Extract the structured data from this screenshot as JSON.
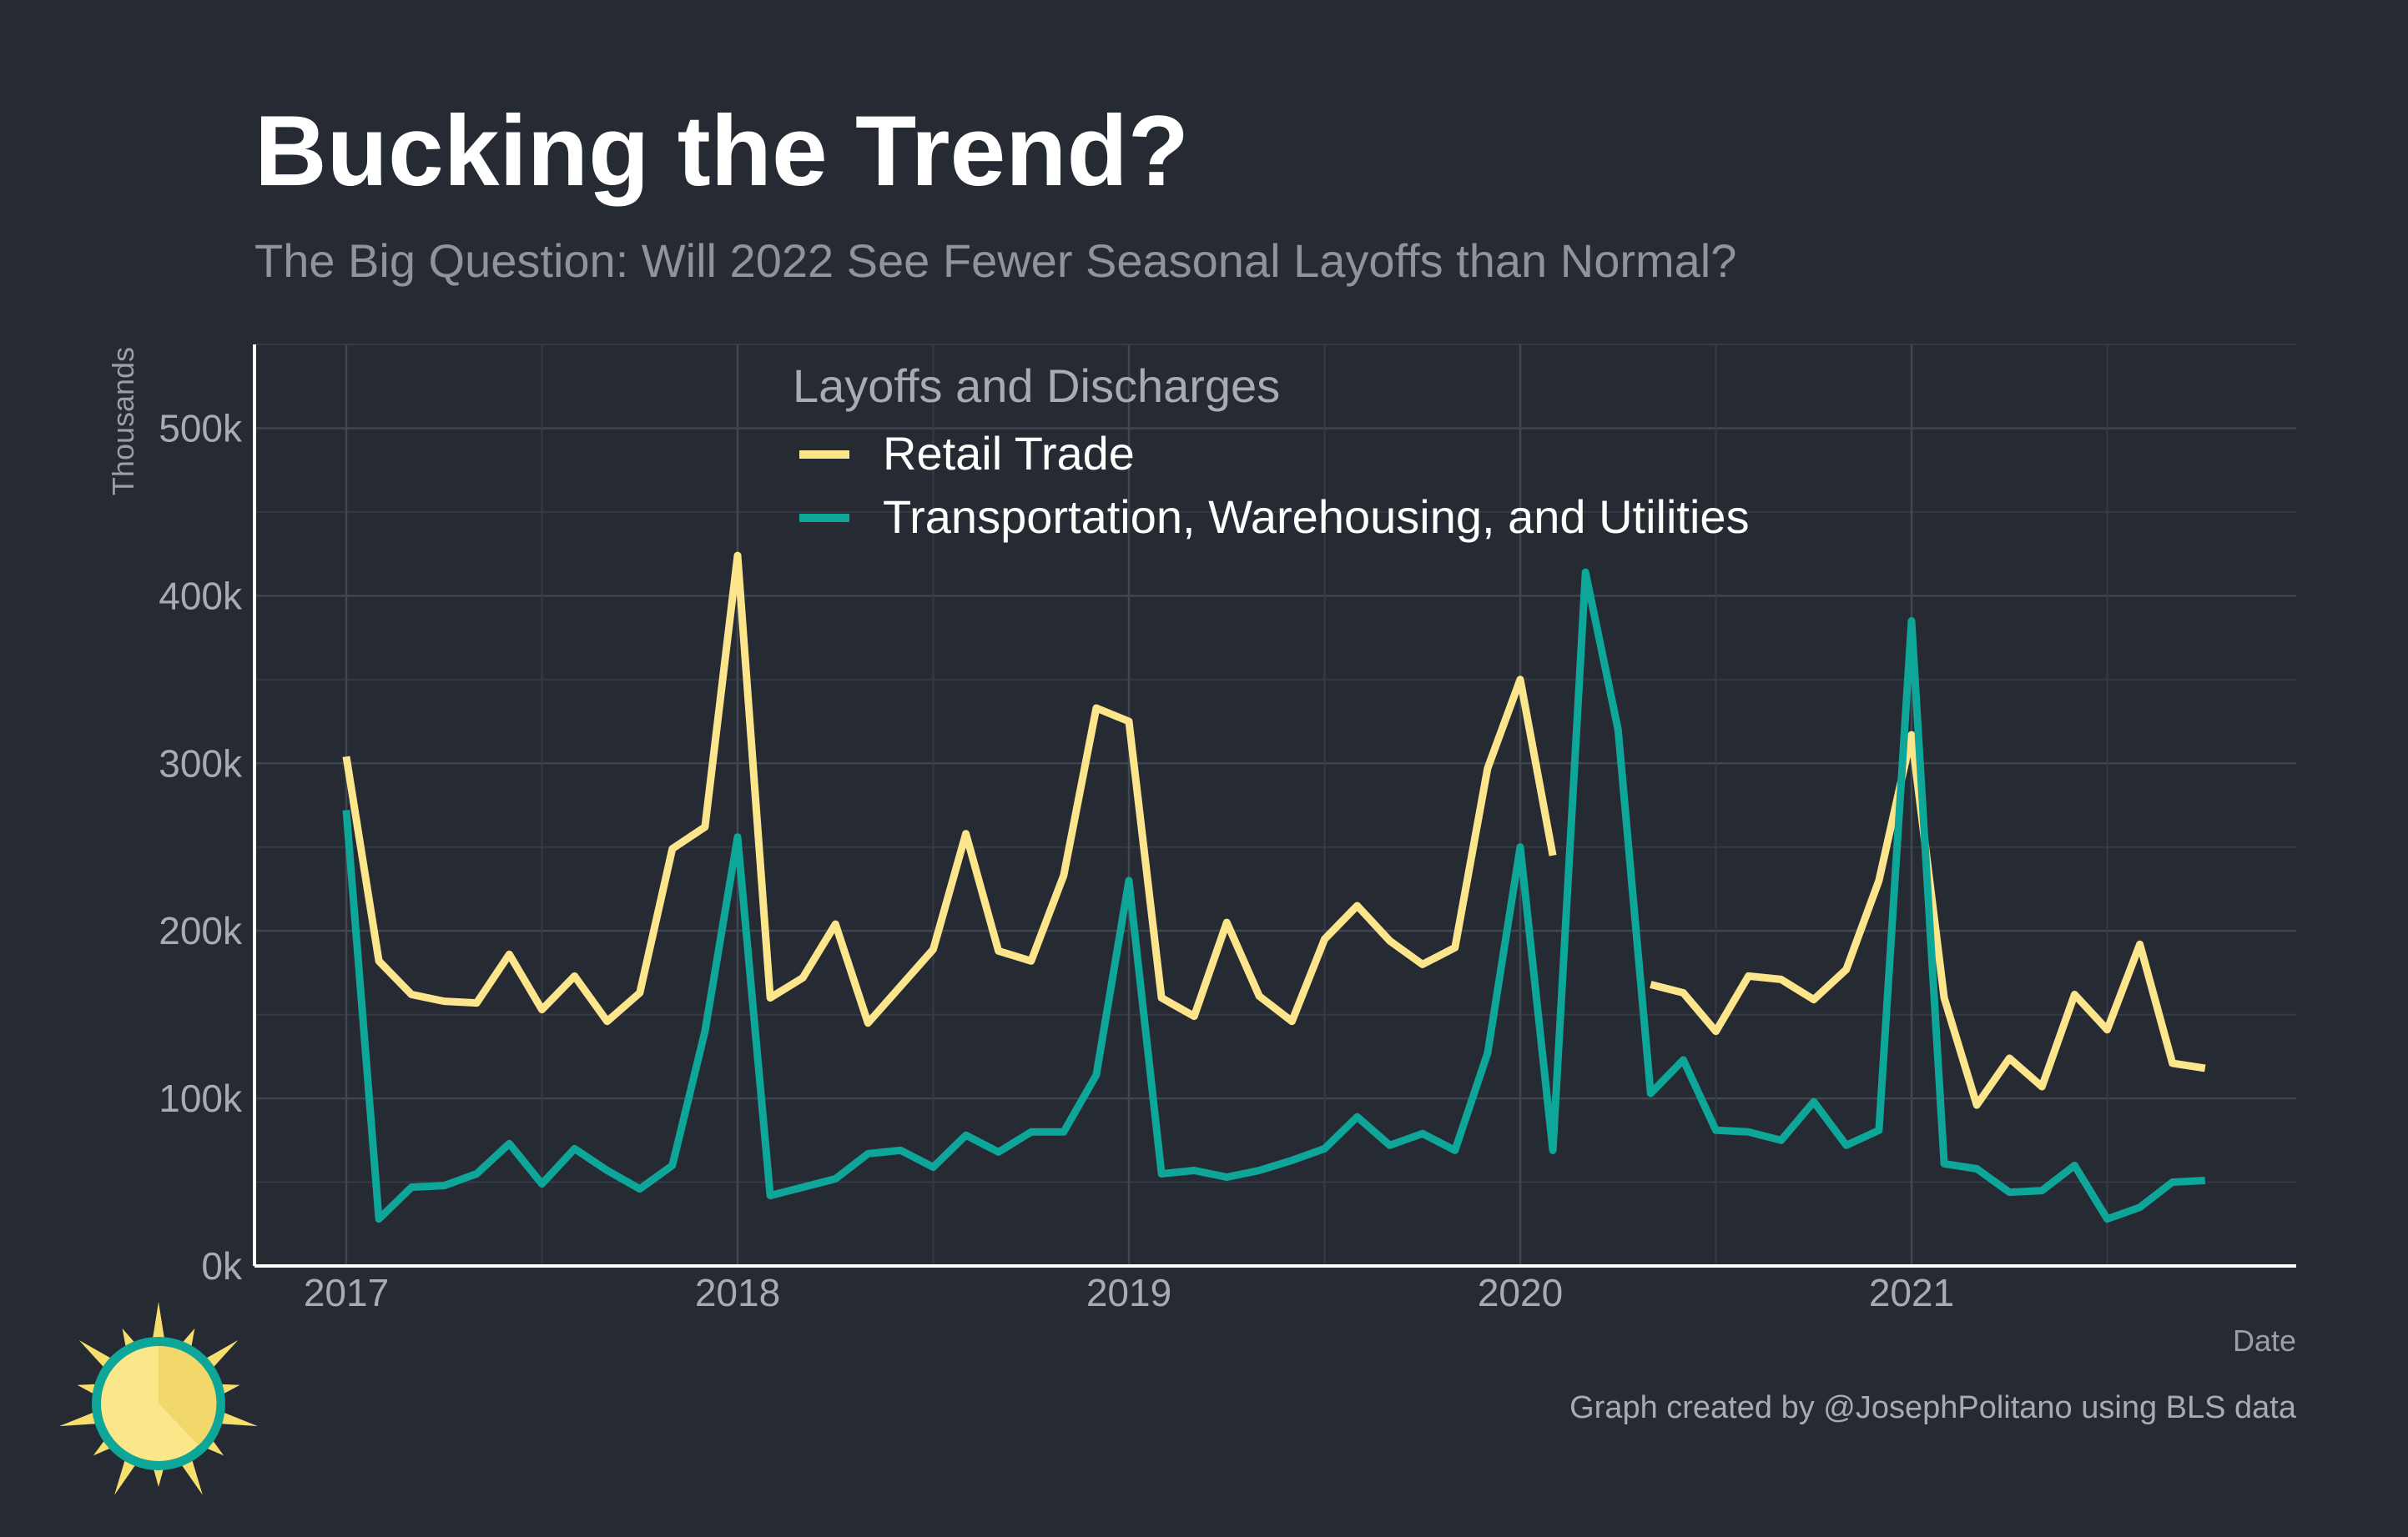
{
  "chart_data": {
    "type": "line",
    "title": "Bucking the Trend?",
    "subtitle": "The Big Question: Will 2022 See Fewer Seasonal Layoffs than Normal?",
    "xlabel": "Date",
    "ylabel": "Thousands",
    "ylim": [
      0,
      550000
    ],
    "yticks": [
      0,
      100000,
      200000,
      300000,
      400000,
      500000
    ],
    "ytick_labels": [
      "0k",
      "100k",
      "200k",
      "300k",
      "400k",
      "500k"
    ],
    "xticks": [
      "2017",
      "2018",
      "2019",
      "2020",
      "2021"
    ],
    "grid": true,
    "legend": {
      "title": "Layoffs and Discharges",
      "placement": "top-center"
    },
    "caption": "Graph created by @JosephPolitano using BLS data",
    "x": [
      "2017-01",
      "2017-02",
      "2017-03",
      "2017-04",
      "2017-05",
      "2017-06",
      "2017-07",
      "2017-08",
      "2017-09",
      "2017-10",
      "2017-11",
      "2017-12",
      "2018-01",
      "2018-02",
      "2018-03",
      "2018-04",
      "2018-05",
      "2018-06",
      "2018-07",
      "2018-08",
      "2018-09",
      "2018-10",
      "2018-11",
      "2018-12",
      "2019-01",
      "2019-02",
      "2019-03",
      "2019-04",
      "2019-05",
      "2019-06",
      "2019-07",
      "2019-08",
      "2019-09",
      "2019-10",
      "2019-11",
      "2019-12",
      "2020-01",
      "2020-02",
      "2020-03",
      "2020-04",
      "2020-05",
      "2020-06",
      "2020-07",
      "2020-08",
      "2020-09",
      "2020-10",
      "2020-11",
      "2020-12",
      "2021-01",
      "2021-02",
      "2021-03",
      "2021-04",
      "2021-05",
      "2021-06",
      "2021-07",
      "2021-08",
      "2021-09",
      "2021-10"
    ],
    "series": [
      {
        "name": "Retail Trade",
        "color": "#fde58c",
        "values": [
          304000,
          182000,
          162000,
          158000,
          157000,
          186000,
          153000,
          173000,
          146000,
          163000,
          249000,
          262000,
          424000,
          160000,
          172000,
          204000,
          145000,
          167000,
          189000,
          258000,
          188000,
          182000,
          233000,
          333000,
          325000,
          160000,
          149000,
          205000,
          161000,
          146000,
          195000,
          215000,
          194000,
          180000,
          190000,
          297000,
          350000,
          245000,
          null,
          null,
          168000,
          163000,
          140000,
          173000,
          171000,
          159000,
          177000,
          230000,
          317000,
          160000,
          96000,
          124000,
          107000,
          162000,
          141000,
          192000,
          121000,
          118000
        ]
      },
      {
        "name": "Transportation, Warehousing, and Utilities",
        "color": "#0da698",
        "values": [
          272000,
          28000,
          47000,
          48000,
          55000,
          73000,
          49000,
          70000,
          57000,
          46000,
          60000,
          140000,
          256000,
          42000,
          47000,
          52000,
          67000,
          69000,
          59000,
          78000,
          68000,
          80000,
          80000,
          114000,
          230000,
          55000,
          57000,
          53000,
          57000,
          63000,
          70000,
          89000,
          72000,
          79000,
          69000,
          127000,
          250000,
          69000,
          414000,
          320000,
          103000,
          123000,
          81000,
          80000,
          75000,
          98000,
          72000,
          81000,
          385000,
          61000,
          58000,
          44000,
          45000,
          60000,
          28000,
          35000,
          50000,
          51000
        ]
      }
    ]
  },
  "logo": {
    "name": "sun-logo",
    "colors": [
      "#f6df6c",
      "#fbe78a",
      "#0da698"
    ]
  }
}
